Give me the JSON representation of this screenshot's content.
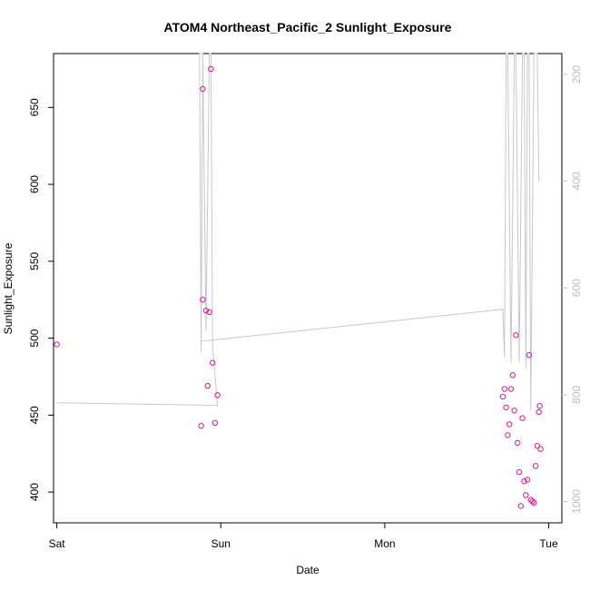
{
  "chart_data": {
    "type": "scatter",
    "title": "ATOM4 Northeast_Pacific_2 Sunlight_Exposure",
    "xlabel": "Date",
    "ylabel": "Sunlight_Exposure",
    "x_axis": {
      "unit": "days",
      "range": [
        -0.02,
        3.08
      ],
      "ticks": [
        {
          "value": 0,
          "label": "Sat"
        },
        {
          "value": 1,
          "label": "Sun"
        },
        {
          "value": 2,
          "label": "Mon"
        },
        {
          "value": 3,
          "label": "Tue"
        }
      ]
    },
    "y_axis": {
      "range": [
        380,
        685
      ],
      "ticks": [
        400,
        450,
        500,
        550,
        600,
        650
      ]
    },
    "y2_axis": {
      "range": [
        1040,
        161
      ],
      "ticks": [
        200,
        400,
        600,
        800,
        1000
      ],
      "color": "#bfbfbf"
    },
    "grid": false,
    "legend": "none",
    "colors": {
      "points": "#e0189a",
      "line": "#c8c8c8",
      "axis": "#000000",
      "secondary_axis": "#bfbfbf"
    },
    "series": [
      {
        "style": "points",
        "axis": "left",
        "points": [
          {
            "x": 0.0,
            "y": 496
          },
          {
            "x": 0.88,
            "y": 443
          },
          {
            "x": 0.89,
            "y": 525
          },
          {
            "x": 0.89,
            "y": 662
          },
          {
            "x": 0.91,
            "y": 518
          },
          {
            "x": 0.92,
            "y": 469
          },
          {
            "x": 0.93,
            "y": 517
          },
          {
            "x": 0.94,
            "y": 675
          },
          {
            "x": 0.95,
            "y": 484
          },
          {
            "x": 0.965,
            "y": 445
          },
          {
            "x": 0.98,
            "y": 463
          },
          {
            "x": 2.72,
            "y": 462
          },
          {
            "x": 2.73,
            "y": 467
          },
          {
            "x": 2.74,
            "y": 455
          },
          {
            "x": 2.75,
            "y": 437
          },
          {
            "x": 2.76,
            "y": 444
          },
          {
            "x": 2.77,
            "y": 467
          },
          {
            "x": 2.78,
            "y": 476
          },
          {
            "x": 2.79,
            "y": 453
          },
          {
            "x": 2.8,
            "y": 502
          },
          {
            "x": 2.81,
            "y": 432
          },
          {
            "x": 2.82,
            "y": 413
          },
          {
            "x": 2.83,
            "y": 391
          },
          {
            "x": 2.84,
            "y": 448
          },
          {
            "x": 2.85,
            "y": 407
          },
          {
            "x": 2.86,
            "y": 398
          },
          {
            "x": 2.87,
            "y": 408
          },
          {
            "x": 2.88,
            "y": 489
          },
          {
            "x": 2.89,
            "y": 395
          },
          {
            "x": 2.9,
            "y": 394
          },
          {
            "x": 2.91,
            "y": 393
          },
          {
            "x": 2.92,
            "y": 417
          },
          {
            "x": 2.93,
            "y": 430
          },
          {
            "x": 2.94,
            "y": 452
          },
          {
            "x": 2.945,
            "y": 456
          },
          {
            "x": 2.95,
            "y": 428
          }
        ]
      },
      {
        "style": "line",
        "axis": "right",
        "points": [
          {
            "x": 0.0,
            "y": 815
          },
          {
            "x": 0.98,
            "y": 820
          },
          {
            "x": 0.95,
            "y": 710
          },
          {
            "x": 0.94,
            "y": 161
          },
          {
            "x": 0.93,
            "y": 161
          },
          {
            "x": 0.91,
            "y": 680
          },
          {
            "x": 0.89,
            "y": 161
          },
          {
            "x": 0.88,
            "y": 720
          },
          {
            "x": 0.87,
            "y": 161
          },
          {
            "x": 0.89,
            "y": 161
          },
          {
            "x": 0.88,
            "y": 700
          },
          {
            "x": 2.72,
            "y": 640
          },
          {
            "x": 2.73,
            "y": 730
          },
          {
            "x": 2.74,
            "y": 161
          },
          {
            "x": 2.75,
            "y": 161
          },
          {
            "x": 2.77,
            "y": 740
          },
          {
            "x": 2.79,
            "y": 161
          },
          {
            "x": 2.8,
            "y": 161
          },
          {
            "x": 2.82,
            "y": 740
          },
          {
            "x": 2.84,
            "y": 161
          },
          {
            "x": 2.85,
            "y": 161
          },
          {
            "x": 2.86,
            "y": 750
          },
          {
            "x": 2.87,
            "y": 161
          },
          {
            "x": 2.88,
            "y": 161
          },
          {
            "x": 2.89,
            "y": 830
          },
          {
            "x": 2.91,
            "y": 161
          },
          {
            "x": 2.93,
            "y": 161
          },
          {
            "x": 2.94,
            "y": 400
          }
        ]
      }
    ]
  }
}
